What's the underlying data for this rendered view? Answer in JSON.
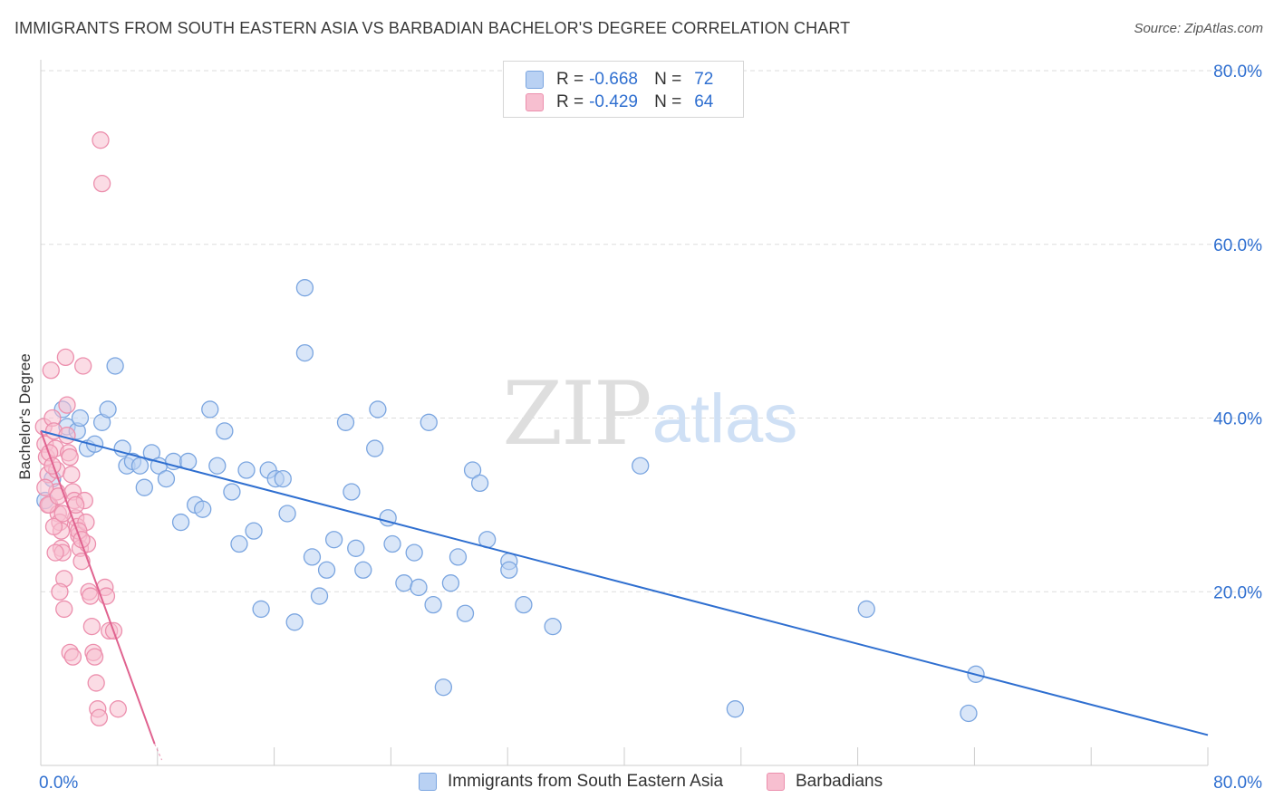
{
  "title": "IMMIGRANTS FROM SOUTH EASTERN ASIA VS BARBADIAN BACHELOR'S DEGREE CORRELATION CHART",
  "source": "Source: ZipAtlas.com",
  "watermark": {
    "zip": "ZIP",
    "atlas": "atlas"
  },
  "legend": {
    "r_label": "R =",
    "n_label": "N =",
    "rows": [
      {
        "r": "-0.668",
        "n": "72"
      },
      {
        "r": "-0.429",
        "n": "64"
      }
    ]
  },
  "colors": {
    "blue_fill": "#b9d1f3",
    "blue_stroke": "#7aa5e0",
    "blue_line": "#2f6fd0",
    "pink_fill": "#f7bfd0",
    "pink_stroke": "#ec8fad",
    "pink_line": "#e0628f",
    "axis_text": "#2f6fd0",
    "grid": "#dddddd"
  },
  "chart_data": {
    "type": "scatter",
    "title": "IMMIGRANTS FROM SOUTH EASTERN ASIA VS BARBADIAN BACHELOR'S DEGREE CORRELATION CHART",
    "xlabel": "",
    "ylabel": "Bachelor's Degree",
    "xlim": [
      0,
      80
    ],
    "ylim": [
      0,
      80
    ],
    "x_tick_labels": [
      "0.0%",
      "80.0%"
    ],
    "y_ticks": [
      20,
      40,
      60,
      80
    ],
    "y_tick_labels": [
      "20.0%",
      "40.0%",
      "60.0%",
      "80.0%"
    ],
    "series": [
      {
        "name": "Immigrants from South Eastern Asia",
        "color": "blue",
        "trend": {
          "x0": 0,
          "y0": 38.5,
          "x1": 80,
          "y1": 3.5
        },
        "points": [
          [
            0.3,
            30.5
          ],
          [
            1.5,
            41.0
          ],
          [
            1.8,
            39.0
          ],
          [
            2.5,
            38.5
          ],
          [
            2.7,
            40.0
          ],
          [
            3.2,
            36.5
          ],
          [
            3.7,
            37.0
          ],
          [
            4.2,
            39.5
          ],
          [
            4.6,
            41.0
          ],
          [
            5.1,
            46.0
          ],
          [
            5.6,
            36.5
          ],
          [
            5.9,
            34.5
          ],
          [
            6.3,
            35.0
          ],
          [
            6.8,
            34.5
          ],
          [
            7.1,
            32.0
          ],
          [
            7.6,
            36.0
          ],
          [
            8.1,
            34.5
          ],
          [
            8.6,
            33.0
          ],
          [
            9.1,
            35.0
          ],
          [
            9.6,
            28.0
          ],
          [
            10.1,
            35.0
          ],
          [
            10.6,
            30.0
          ],
          [
            11.1,
            29.5
          ],
          [
            11.6,
            41.0
          ],
          [
            12.1,
            34.5
          ],
          [
            12.6,
            38.5
          ],
          [
            13.1,
            31.5
          ],
          [
            13.6,
            25.5
          ],
          [
            14.1,
            34.0
          ],
          [
            14.6,
            27.0
          ],
          [
            15.1,
            18.0
          ],
          [
            15.6,
            34.0
          ],
          [
            16.1,
            33.0
          ],
          [
            16.6,
            33.0
          ],
          [
            16.9,
            29.0
          ],
          [
            17.4,
            16.5
          ],
          [
            18.1,
            55.0
          ],
          [
            18.1,
            47.5
          ],
          [
            18.6,
            24.0
          ],
          [
            19.1,
            19.5
          ],
          [
            19.6,
            22.5
          ],
          [
            20.1,
            26.0
          ],
          [
            20.9,
            39.5
          ],
          [
            21.3,
            31.5
          ],
          [
            21.6,
            25.0
          ],
          [
            22.1,
            22.5
          ],
          [
            22.9,
            36.5
          ],
          [
            23.1,
            41.0
          ],
          [
            23.8,
            28.5
          ],
          [
            24.1,
            25.5
          ],
          [
            24.9,
            21.0
          ],
          [
            25.6,
            24.5
          ],
          [
            25.9,
            20.5
          ],
          [
            26.6,
            39.5
          ],
          [
            26.9,
            18.5
          ],
          [
            27.6,
            9.0
          ],
          [
            28.1,
            21.0
          ],
          [
            28.6,
            24.0
          ],
          [
            29.1,
            17.5
          ],
          [
            29.6,
            34.0
          ],
          [
            30.1,
            32.5
          ],
          [
            30.6,
            26.0
          ],
          [
            32.1,
            23.5
          ],
          [
            32.1,
            22.5
          ],
          [
            33.1,
            18.5
          ],
          [
            35.1,
            16.0
          ],
          [
            41.1,
            34.5
          ],
          [
            47.6,
            6.5
          ],
          [
            56.6,
            18.0
          ],
          [
            64.1,
            10.5
          ],
          [
            63.6,
            6.0
          ],
          [
            0.8,
            33.0
          ]
        ]
      },
      {
        "name": "Barbadians",
        "color": "pink",
        "trend": {
          "x0": 0,
          "y0": 38.5,
          "x1": 7.8,
          "y1": 2.5
        },
        "points": [
          [
            0.2,
            39.0
          ],
          [
            0.3,
            37.0
          ],
          [
            0.4,
            35.5
          ],
          [
            0.5,
            33.5
          ],
          [
            0.6,
            30.0
          ],
          [
            0.7,
            45.5
          ],
          [
            0.8,
            40.0
          ],
          [
            0.9,
            38.5
          ],
          [
            1.0,
            36.5
          ],
          [
            1.1,
            34.0
          ],
          [
            1.1,
            31.5
          ],
          [
            1.2,
            29.0
          ],
          [
            1.3,
            28.0
          ],
          [
            1.4,
            27.0
          ],
          [
            1.4,
            25.0
          ],
          [
            1.5,
            24.5
          ],
          [
            1.6,
            21.5
          ],
          [
            1.7,
            47.0
          ],
          [
            1.8,
            41.5
          ],
          [
            1.8,
            38.0
          ],
          [
            1.9,
            36.0
          ],
          [
            2.0,
            35.5
          ],
          [
            2.1,
            33.5
          ],
          [
            2.2,
            31.5
          ],
          [
            2.3,
            30.5
          ],
          [
            2.4,
            28.5
          ],
          [
            2.5,
            27.5
          ],
          [
            2.6,
            26.5
          ],
          [
            2.7,
            25.0
          ],
          [
            2.8,
            23.5
          ],
          [
            2.9,
            46.0
          ],
          [
            3.0,
            30.5
          ],
          [
            3.1,
            28.0
          ],
          [
            3.2,
            25.5
          ],
          [
            3.3,
            20.0
          ],
          [
            3.4,
            19.5
          ],
          [
            3.5,
            16.0
          ],
          [
            3.6,
            13.0
          ],
          [
            3.7,
            12.5
          ],
          [
            3.8,
            9.5
          ],
          [
            3.9,
            6.5
          ],
          [
            4.0,
            5.5
          ],
          [
            4.1,
            72.0
          ],
          [
            4.2,
            67.0
          ],
          [
            4.4,
            20.5
          ],
          [
            4.5,
            19.5
          ],
          [
            4.7,
            15.5
          ],
          [
            5.0,
            15.5
          ],
          [
            5.3,
            6.5
          ],
          [
            0.3,
            32.0
          ],
          [
            0.5,
            30.0
          ],
          [
            0.9,
            27.5
          ],
          [
            1.0,
            24.5
          ],
          [
            1.3,
            20.0
          ],
          [
            1.6,
            18.0
          ],
          [
            2.0,
            13.0
          ],
          [
            2.2,
            12.5
          ],
          [
            2.4,
            30.0
          ],
          [
            2.6,
            27.0
          ],
          [
            2.8,
            26.0
          ],
          [
            0.6,
            36.0
          ],
          [
            0.8,
            34.5
          ],
          [
            1.2,
            31.0
          ],
          [
            1.5,
            29.0
          ]
        ]
      }
    ]
  }
}
